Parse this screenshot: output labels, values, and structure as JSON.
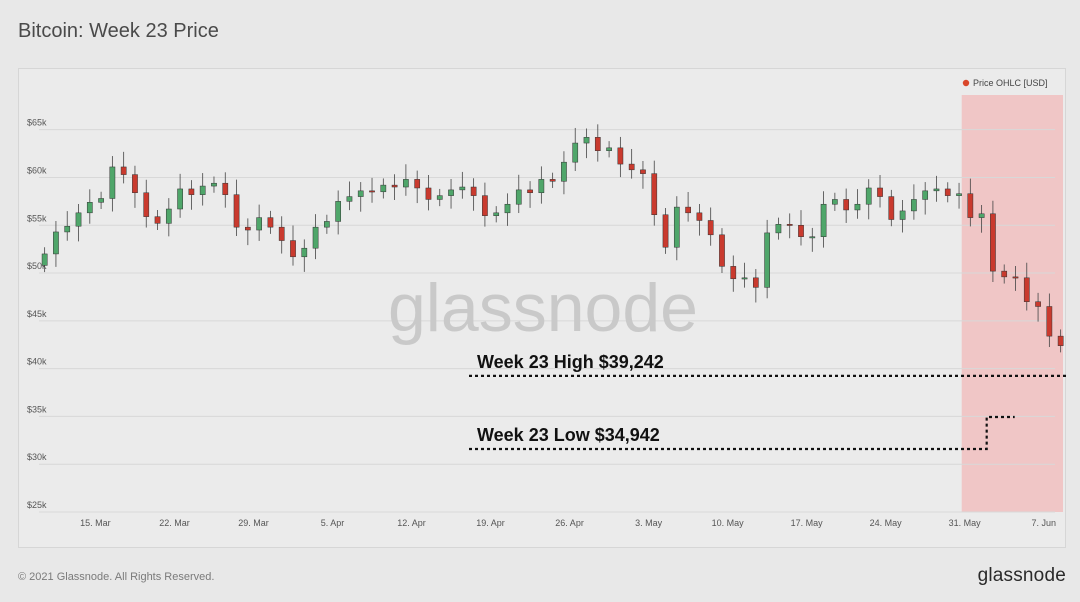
{
  "title": "Bitcoin: Week 23 Price",
  "footer": {
    "copyright": "© 2021 Glassnode. All Rights Reserved.",
    "logo": "glassnode"
  },
  "watermark": "glassnode",
  "colors": {
    "up": "#4fa66a",
    "down": "#c93a2e",
    "highlight": "#f0c6c6",
    "legend_dot": "#d9472b"
  },
  "chart_data": {
    "type": "candlestick",
    "title": "Bitcoin: Week 23 Price",
    "legend": {
      "label": "Price OHLC [USD]",
      "position": "top-right"
    },
    "y_ticks": [
      "$25k",
      "$30k",
      "$35k",
      "$40k",
      "$45k",
      "$50k",
      "$55k",
      "$60k",
      "$65k"
    ],
    "y_tick_values": [
      25000,
      30000,
      35000,
      40000,
      45000,
      50000,
      55000,
      60000,
      65000
    ],
    "ylim": [
      25000,
      68000
    ],
    "x_ticks": [
      "15. Mar",
      "22. Mar",
      "29. Mar",
      "5. Apr",
      "12. Apr",
      "19. Apr",
      "26. Apr",
      "3. May",
      "10. May",
      "17. May",
      "24. May",
      "31. May",
      "7. Jun"
    ],
    "x_tick_dates": [
      "2021-03-15",
      "2021-03-22",
      "2021-03-29",
      "2021-04-05",
      "2021-04-12",
      "2021-04-19",
      "2021-04-26",
      "2021-05-03",
      "2021-05-10",
      "2021-05-17",
      "2021-05-24",
      "2021-05-31",
      "2021-06-07"
    ],
    "date_range": [
      "2021-03-10",
      "2021-06-08"
    ],
    "highlight_range": [
      "2021-05-31",
      "2021-06-08"
    ],
    "grid": "horizontal",
    "annotations": [
      {
        "label": "Week 23 High $39,242",
        "value": 39242
      },
      {
        "label": "Week 23 Low $34,942",
        "value": 34942
      }
    ],
    "closes": [
      52000,
      54300,
      54900,
      56300,
      57400,
      57800,
      61100,
      60300,
      58400,
      55900,
      55200,
      56700,
      58800,
      58200,
      59100,
      59400,
      58200,
      54800,
      54500,
      55800,
      54800,
      53400,
      51700,
      52600,
      54800,
      55400,
      57500,
      58000,
      58600,
      58500,
      59200,
      59000,
      59800,
      58900,
      57700,
      58100,
      58700,
      59000,
      58100,
      56000,
      56300,
      57200,
      58700,
      58400,
      59800,
      59600,
      61600,
      63600,
      64200,
      62800,
      63100,
      61400,
      60800,
      60400,
      56100,
      52700,
      56900,
      56300,
      55500,
      54000,
      50700,
      49400,
      49500,
      48500,
      54200,
      55100,
      55000,
      53800,
      53800,
      57200,
      57700,
      56600,
      57200,
      58900,
      58000,
      55600,
      56500,
      57700,
      58600,
      58800,
      58100,
      58300,
      55800,
      56200,
      50200,
      49600,
      49500,
      47000,
      46500,
      43400,
      42400,
      36700,
      39600,
      37800,
      37200,
      34400,
      37400,
      38200,
      39300,
      38100,
      39200,
      35500,
      35700,
      35100,
      36900,
      36900,
      37200,
      37500,
      39100,
      37800,
      36100,
      35400,
      35600
    ]
  }
}
